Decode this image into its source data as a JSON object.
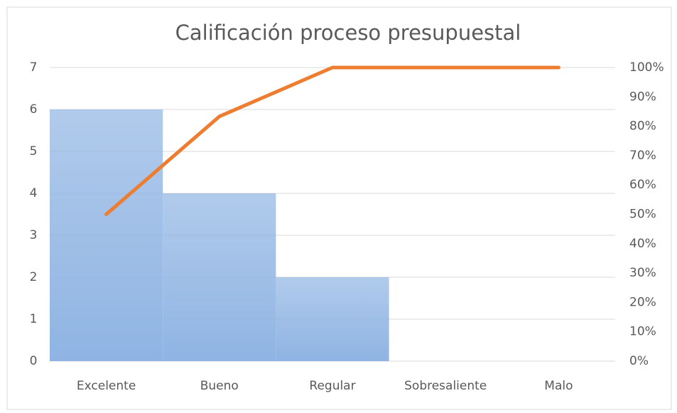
{
  "chart_data": {
    "type": "pareto",
    "title": "Calificación proceso presupuestal",
    "categories": [
      "Excelente",
      "Bueno",
      "Regular",
      "Sobresaliente",
      "Malo"
    ],
    "series": [
      {
        "color": "#8fb4e3",
        "values": [
          6,
          4,
          2,
          0,
          0
        ]
      },
      {
        "color": "#ed7d31",
        "values": [
          50,
          83.33,
          100,
          100,
          100
        ],
        "axis": "y2"
      }
    ],
    "ylim": [
      0,
      7
    ],
    "yticks": [
      0,
      1,
      2,
      3,
      4,
      5,
      6,
      7
    ],
    "y2lim": [
      0,
      100
    ],
    "y2ticks": [
      {
        "value": 0,
        "label": "0%"
      },
      {
        "value": 10,
        "label": "10%"
      },
      {
        "value": 20,
        "label": "20%"
      },
      {
        "value": 30,
        "label": "30%"
      },
      {
        "value": 40,
        "label": "40%"
      },
      {
        "value": 50,
        "label": "50%"
      },
      {
        "value": 60,
        "label": "60%"
      },
      {
        "value": 70,
        "label": "70%"
      },
      {
        "value": 80,
        "label": "80%"
      },
      {
        "value": 90,
        "label": "90%"
      },
      {
        "value": 100,
        "label": "100%"
      }
    ],
    "grid": true
  }
}
